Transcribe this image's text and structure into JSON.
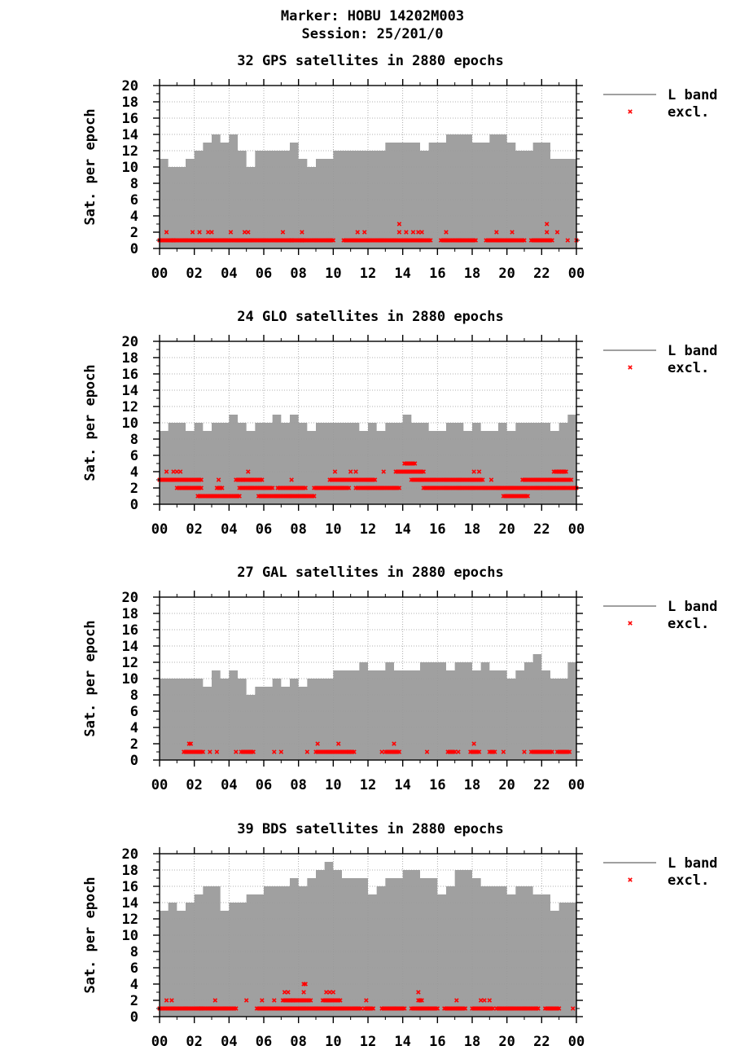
{
  "header": {
    "marker": "Marker: HOBU 14202M003",
    "session": "Session: 25/201/0"
  },
  "legend": {
    "line_label": "L band",
    "excl_label": "excl."
  },
  "colors": {
    "area": "#a0a0a0",
    "excl": "#ff0000",
    "grid": "#a0a0a0"
  },
  "chart_data": [
    {
      "type": "area",
      "title": "32 GPS satellites in 2880 epochs",
      "ylabel": "Sat. per epoch",
      "xlabel": "",
      "ylim": [
        0,
        20
      ],
      "xlim": [
        0,
        24
      ],
      "yticks": [
        "0",
        "2",
        "4",
        "6",
        "8",
        "10",
        "12",
        "14",
        "16",
        "18",
        "20"
      ],
      "xticks": [
        "00",
        "02",
        "04",
        "06",
        "08",
        "10",
        "12",
        "14",
        "16",
        "18",
        "20",
        "22",
        "00"
      ],
      "series": [
        {
          "name": "L band",
          "x": [
            0,
            0.5,
            1,
            1.5,
            2,
            2.5,
            3,
            3.5,
            4,
            4.5,
            5,
            5.5,
            6,
            6.5,
            7,
            7.5,
            8,
            8.5,
            9,
            9.5,
            10,
            10.5,
            11,
            11.5,
            12,
            12.5,
            13,
            13.5,
            14,
            14.5,
            15,
            15.5,
            16,
            16.5,
            17,
            17.5,
            18,
            18.5,
            19,
            19.5,
            20,
            20.5,
            21,
            21.5,
            22,
            22.5,
            23,
            23.5,
            24
          ],
          "y": [
            11,
            10,
            10,
            11,
            12,
            13,
            14,
            13,
            14,
            12,
            10,
            12,
            12,
            12,
            12,
            13,
            11,
            10,
            11,
            11,
            12,
            12,
            12,
            12,
            12,
            12,
            13,
            13,
            13,
            13,
            12,
            13,
            13,
            14,
            14,
            14,
            13,
            13,
            14,
            14,
            13,
            12,
            12,
            13,
            13,
            11,
            11,
            11,
            10
          ]
        },
        {
          "name": "excl.",
          "points": [
            [
              0.4,
              2
            ],
            [
              0.8,
              1
            ],
            [
              1.9,
              2
            ],
            [
              2.3,
              2
            ],
            [
              2.8,
              2
            ],
            [
              3.0,
              2
            ],
            [
              4.1,
              2
            ],
            [
              4.9,
              2
            ],
            [
              5.1,
              2
            ],
            [
              7.1,
              2
            ],
            [
              7.6,
              1
            ],
            [
              8.2,
              2
            ],
            [
              8.2,
              1
            ],
            [
              11.4,
              2
            ],
            [
              11.8,
              2
            ],
            [
              13.8,
              3
            ],
            [
              13.8,
              2
            ],
            [
              14.2,
              2
            ],
            [
              14.6,
              2
            ],
            [
              14.9,
              2
            ],
            [
              15.1,
              2
            ],
            [
              16.5,
              2
            ],
            [
              19.4,
              2
            ],
            [
              20.3,
              2
            ],
            [
              22.3,
              3
            ],
            [
              22.3,
              2
            ],
            [
              22.9,
              2
            ],
            [
              23.5,
              1
            ],
            [
              24.0,
              1
            ]
          ],
          "runs": [
            [
              0,
              10.0,
              1
            ],
            [
              10.6,
              15.6,
              1
            ],
            [
              16.2,
              18.2,
              1
            ],
            [
              18.8,
              21.0,
              1
            ],
            [
              21.4,
              22.6,
              1
            ]
          ]
        }
      ]
    },
    {
      "type": "area",
      "title": "24 GLO satellites in 2880 epochs",
      "ylabel": "Sat. per epoch",
      "xlabel": "",
      "ylim": [
        0,
        20
      ],
      "xlim": [
        0,
        24
      ],
      "yticks": [
        "0",
        "2",
        "4",
        "6",
        "8",
        "10",
        "12",
        "14",
        "16",
        "18",
        "20"
      ],
      "xticks": [
        "00",
        "02",
        "04",
        "06",
        "08",
        "10",
        "12",
        "14",
        "16",
        "18",
        "20",
        "22",
        "00"
      ],
      "series": [
        {
          "name": "L band",
          "x": [
            0,
            0.5,
            1,
            1.5,
            2,
            2.5,
            3,
            3.5,
            4,
            4.5,
            5,
            5.5,
            6,
            6.5,
            7,
            7.5,
            8,
            8.5,
            9,
            9.5,
            10,
            10.5,
            11,
            11.5,
            12,
            12.5,
            13,
            13.5,
            14,
            14.5,
            15,
            15.5,
            16,
            16.5,
            17,
            17.5,
            18,
            18.5,
            19,
            19.5,
            20,
            20.5,
            21,
            21.5,
            22,
            22.5,
            23,
            23.5,
            24
          ],
          "y": [
            9,
            10,
            10,
            9,
            10,
            9,
            10,
            10,
            11,
            10,
            9,
            10,
            10,
            11,
            10,
            11,
            10,
            9,
            10,
            10,
            10,
            10,
            10,
            9,
            10,
            9,
            10,
            10,
            11,
            10,
            10,
            9,
            9,
            10,
            10,
            9,
            10,
            9,
            9,
            10,
            9,
            10,
            10,
            10,
            10,
            9,
            10,
            11,
            9
          ],
          "step_top": true
        },
        {
          "name": "excl.",
          "points": [
            [
              0.4,
              4
            ],
            [
              0.8,
              4
            ],
            [
              1.0,
              4
            ],
            [
              1.2,
              4
            ],
            [
              3.4,
              3
            ],
            [
              4.8,
              3
            ],
            [
              5.1,
              4
            ],
            [
              7.6,
              3
            ],
            [
              10.1,
              4
            ],
            [
              11.0,
              4
            ],
            [
              11.3,
              4
            ],
            [
              12.9,
              4
            ],
            [
              18.1,
              4
            ],
            [
              18.4,
              4
            ],
            [
              19.1,
              3
            ],
            [
              23.0,
              4
            ],
            [
              23.3,
              4
            ]
          ],
          "runs": [
            [
              0,
              2.4,
              3
            ],
            [
              1.0,
              2.4,
              2
            ],
            [
              2.2,
              4.6,
              1
            ],
            [
              3.3,
              3.6,
              2
            ],
            [
              4.4,
              5.9,
              3
            ],
            [
              4.6,
              6.5,
              2
            ],
            [
              5.7,
              8.9,
              1
            ],
            [
              6.8,
              8.4,
              2
            ],
            [
              8.9,
              10.9,
              2
            ],
            [
              9.8,
              12.4,
              3
            ],
            [
              11.3,
              13.8,
              2
            ],
            [
              13.6,
              15.2,
              4
            ],
            [
              14.1,
              14.7,
              5
            ],
            [
              14.5,
              18.6,
              3
            ],
            [
              15.2,
              24.0,
              2
            ],
            [
              19.8,
              20.4,
              1
            ],
            [
              20.5,
              21.2,
              1
            ],
            [
              20.9,
              23.7,
              3
            ],
            [
              22.7,
              23.4,
              4
            ]
          ]
        }
      ]
    },
    {
      "type": "area",
      "title": "27 GAL satellites in 2880 epochs",
      "ylabel": "Sat. per epoch",
      "xlabel": "",
      "ylim": [
        0,
        20
      ],
      "xlim": [
        0,
        24
      ],
      "yticks": [
        "0",
        "2",
        "4",
        "6",
        "8",
        "10",
        "12",
        "14",
        "16",
        "18",
        "20"
      ],
      "xticks": [
        "00",
        "02",
        "04",
        "06",
        "08",
        "10",
        "12",
        "14",
        "16",
        "18",
        "20",
        "22",
        "00"
      ],
      "series": [
        {
          "name": "L band",
          "x": [
            0,
            0.5,
            1,
            1.5,
            2,
            2.5,
            3,
            3.5,
            4,
            4.5,
            5,
            5.5,
            6,
            6.5,
            7,
            7.5,
            8,
            8.5,
            9,
            9.5,
            10,
            10.5,
            11,
            11.5,
            12,
            12.5,
            13,
            13.5,
            14,
            14.5,
            15,
            15.5,
            16,
            16.5,
            17,
            17.5,
            18,
            18.5,
            19,
            19.5,
            20,
            20.5,
            21,
            21.5,
            22,
            22.5,
            23,
            23.5,
            24
          ],
          "y": [
            10,
            10,
            10,
            10,
            10,
            9,
            11,
            10,
            11,
            10,
            8,
            9,
            9,
            10,
            9,
            10,
            9,
            10,
            10,
            10,
            11,
            11,
            11,
            12,
            11,
            11,
            12,
            11,
            11,
            11,
            12,
            12,
            12,
            11,
            12,
            12,
            11,
            12,
            11,
            11,
            10,
            11,
            12,
            13,
            11,
            10,
            10,
            12,
            12
          ]
        },
        {
          "name": "excl.",
          "points": [
            [
              1.7,
              2
            ],
            [
              1.8,
              2
            ],
            [
              2.9,
              1
            ],
            [
              3.3,
              1
            ],
            [
              4.4,
              1
            ],
            [
              6.6,
              1
            ],
            [
              7.0,
              1
            ],
            [
              8.5,
              1
            ],
            [
              9.1,
              2
            ],
            [
              10.3,
              2
            ],
            [
              10.9,
              1
            ],
            [
              12.8,
              1
            ],
            [
              13.5,
              2
            ],
            [
              15.4,
              1
            ],
            [
              17.2,
              1
            ],
            [
              18.1,
              2
            ],
            [
              19.8,
              1
            ],
            [
              21.0,
              1
            ],
            [
              22.6,
              1
            ]
          ],
          "runs": [
            [
              1.4,
              2.5,
              1
            ],
            [
              4.7,
              5.4,
              1
            ],
            [
              9.0,
              11.2,
              1
            ],
            [
              13.0,
              13.8,
              1
            ],
            [
              16.6,
              17.0,
              1
            ],
            [
              17.9,
              18.4,
              1
            ],
            [
              19.0,
              19.3,
              1
            ],
            [
              21.4,
              22.5,
              1
            ],
            [
              22.9,
              23.6,
              1
            ]
          ]
        }
      ]
    },
    {
      "type": "area",
      "title": "39 BDS satellites in 2880 epochs",
      "ylabel": "Sat. per epoch",
      "xlabel": "",
      "ylim": [
        0,
        20
      ],
      "xlim": [
        0,
        24
      ],
      "yticks": [
        "0",
        "2",
        "4",
        "6",
        "8",
        "10",
        "12",
        "14",
        "16",
        "18",
        "20"
      ],
      "xticks": [
        "00",
        "02",
        "04",
        "06",
        "08",
        "10",
        "12",
        "14",
        "16",
        "18",
        "20",
        "22",
        "00"
      ],
      "series": [
        {
          "name": "L band",
          "x": [
            0,
            0.5,
            1,
            1.5,
            2,
            2.5,
            3,
            3.5,
            4,
            4.5,
            5,
            5.5,
            6,
            6.5,
            7,
            7.5,
            8,
            8.5,
            9,
            9.5,
            10,
            10.5,
            11,
            11.5,
            12,
            12.5,
            13,
            13.5,
            14,
            14.5,
            15,
            15.5,
            16,
            16.5,
            17,
            17.5,
            18,
            18.5,
            19,
            19.5,
            20,
            20.5,
            21,
            21.5,
            22,
            22.5,
            23,
            23.5,
            24
          ],
          "y": [
            13,
            14,
            13,
            14,
            15,
            16,
            16,
            13,
            14,
            14,
            15,
            15,
            16,
            16,
            16,
            17,
            16,
            17,
            18,
            19,
            18,
            17,
            17,
            17,
            15,
            16,
            17,
            17,
            18,
            18,
            17,
            17,
            15,
            16,
            18,
            18,
            17,
            16,
            16,
            16,
            15,
            16,
            16,
            15,
            15,
            13,
            14,
            14,
            14
          ]
        },
        {
          "name": "excl.",
          "points": [
            [
              0.4,
              2
            ],
            [
              0.7,
              2
            ],
            [
              3.2,
              2
            ],
            [
              5.0,
              2
            ],
            [
              5.9,
              2
            ],
            [
              6.6,
              2
            ],
            [
              7.2,
              3
            ],
            [
              7.4,
              3
            ],
            [
              7.7,
              2
            ],
            [
              8.3,
              4
            ],
            [
              8.4,
              4
            ],
            [
              8.3,
              3
            ],
            [
              9.6,
              3
            ],
            [
              9.8,
              3
            ],
            [
              10.0,
              3
            ],
            [
              11.9,
              2
            ],
            [
              14.9,
              3
            ],
            [
              15.0,
              2
            ],
            [
              17.1,
              2
            ],
            [
              18.5,
              2
            ],
            [
              18.7,
              2
            ],
            [
              19.0,
              2
            ],
            [
              23.8,
              1
            ]
          ],
          "runs": [
            [
              0,
              2.4,
              1
            ],
            [
              2.4,
              4.4,
              1
            ],
            [
              5.6,
              11.6,
              1
            ],
            [
              7.1,
              8.7,
              2
            ],
            [
              9.4,
              10.4,
              2
            ],
            [
              11.8,
              12.3,
              1
            ],
            [
              12.8,
              14.1,
              1
            ],
            [
              14.5,
              16.0,
              1
            ],
            [
              14.9,
              15.1,
              2
            ],
            [
              16.4,
              17.6,
              1
            ],
            [
              18.0,
              19.2,
              1
            ],
            [
              19.4,
              21.8,
              1
            ],
            [
              22.2,
              23.0,
              1
            ]
          ]
        }
      ]
    }
  ]
}
